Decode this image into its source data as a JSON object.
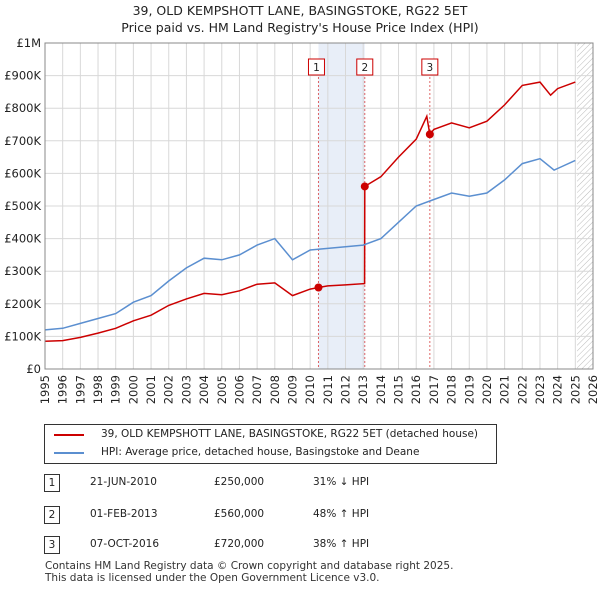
{
  "title": "39, OLD KEMPSHOTT LANE, BASINGSTOKE, RG22 5ET",
  "subtitle": "Price paid vs. HM Land Registry's House Price Index (HPI)",
  "colors": {
    "property": "#cc0000",
    "hpi": "#5b8fd0",
    "shade": "#e8eef8",
    "grid": "#d8d8d8"
  },
  "chart_data": {
    "type": "line",
    "title": "39, OLD KEMPSHOTT LANE, BASINGSTOKE, RG22 5ET",
    "subtitle": "Price paid vs. HM Land Registry's House Price Index (HPI)",
    "xlim": [
      1995,
      2026
    ],
    "ylim": [
      0,
      1000000
    ],
    "x_ticks": [
      "1995",
      "1996",
      "1997",
      "1998",
      "1999",
      "2000",
      "2001",
      "2002",
      "2003",
      "2004",
      "2005",
      "2006",
      "2007",
      "2008",
      "2009",
      "2010",
      "2011",
      "2012",
      "2013",
      "2014",
      "2015",
      "2016",
      "2017",
      "2018",
      "2019",
      "2020",
      "2021",
      "2022",
      "2023",
      "2024",
      "2025",
      "2026"
    ],
    "y_ticks": [
      {
        "value": 0,
        "label": "£0"
      },
      {
        "value": 100000,
        "label": "£100K"
      },
      {
        "value": 200000,
        "label": "£200K"
      },
      {
        "value": 300000,
        "label": "£300K"
      },
      {
        "value": 400000,
        "label": "£400K"
      },
      {
        "value": 500000,
        "label": "£500K"
      },
      {
        "value": 600000,
        "label": "£600K"
      },
      {
        "value": 700000,
        "label": "£700K"
      },
      {
        "value": 800000,
        "label": "£800K"
      },
      {
        "value": 900000,
        "label": "£900K"
      },
      {
        "value": 1000000,
        "label": "£1M"
      }
    ],
    "shaded_regions": [
      [
        2010.47,
        2013.09
      ]
    ],
    "hatched_region_start": 2025.1,
    "series": [
      {
        "name": "39, OLD KEMPSHOTT LANE, BASINGSTOKE, RG22 5ET (detached house)",
        "color": "#cc0000",
        "points": [
          [
            1995,
            85000
          ],
          [
            1996,
            87000
          ],
          [
            1997,
            97000
          ],
          [
            1998,
            110000
          ],
          [
            1999,
            125000
          ],
          [
            2000,
            148000
          ],
          [
            2001,
            165000
          ],
          [
            2002,
            195000
          ],
          [
            2003,
            215000
          ],
          [
            2004,
            232000
          ],
          [
            2005,
            228000
          ],
          [
            2006,
            240000
          ],
          [
            2007,
            260000
          ],
          [
            2008,
            264000
          ],
          [
            2009,
            225000
          ],
          [
            2010,
            245000
          ],
          [
            2010.47,
            250000
          ],
          [
            2011,
            255000
          ],
          [
            2012,
            258000
          ],
          [
            2013.08,
            262000
          ],
          [
            2013.09,
            560000
          ],
          [
            2014,
            590000
          ],
          [
            2015,
            650000
          ],
          [
            2016,
            705000
          ],
          [
            2016.6,
            775000
          ],
          [
            2016.77,
            720000
          ],
          [
            2017,
            735000
          ],
          [
            2018,
            755000
          ],
          [
            2019,
            740000
          ],
          [
            2020,
            760000
          ],
          [
            2021,
            810000
          ],
          [
            2022,
            870000
          ],
          [
            2023,
            880000
          ],
          [
            2023.6,
            840000
          ],
          [
            2024,
            860000
          ],
          [
            2025,
            880000
          ]
        ]
      },
      {
        "name": "HPI: Average price, detached house, Basingstoke and Deane",
        "color": "#5b8fd0",
        "points": [
          [
            1995,
            120000
          ],
          [
            1996,
            125000
          ],
          [
            1997,
            140000
          ],
          [
            1998,
            155000
          ],
          [
            1999,
            170000
          ],
          [
            2000,
            205000
          ],
          [
            2001,
            225000
          ],
          [
            2002,
            270000
          ],
          [
            2003,
            310000
          ],
          [
            2004,
            340000
          ],
          [
            2005,
            335000
          ],
          [
            2006,
            350000
          ],
          [
            2007,
            380000
          ],
          [
            2008,
            400000
          ],
          [
            2009,
            335000
          ],
          [
            2010,
            365000
          ],
          [
            2011,
            370000
          ],
          [
            2012,
            375000
          ],
          [
            2013,
            380000
          ],
          [
            2014,
            400000
          ],
          [
            2015,
            450000
          ],
          [
            2016,
            500000
          ],
          [
            2017,
            520000
          ],
          [
            2018,
            540000
          ],
          [
            2019,
            530000
          ],
          [
            2020,
            540000
          ],
          [
            2021,
            580000
          ],
          [
            2022,
            630000
          ],
          [
            2023,
            645000
          ],
          [
            2023.8,
            610000
          ],
          [
            2024,
            615000
          ],
          [
            2025,
            640000
          ]
        ]
      }
    ],
    "sales": [
      {
        "label": "1",
        "x": 2010.47,
        "y": 250000
      },
      {
        "label": "2",
        "x": 2013.09,
        "y": 560000
      },
      {
        "label": "3",
        "x": 2016.77,
        "y": 720000
      }
    ]
  },
  "legend": {
    "property_label": "39, OLD KEMPSHOTT LANE, BASINGSTOKE, RG22 5ET (detached house)",
    "hpi_label": "HPI: Average price, detached house, Basingstoke and Deane"
  },
  "transactions": [
    {
      "num": "1",
      "date": "21-JUN-2010",
      "price": "£250,000",
      "hpi": "31% ↓ HPI"
    },
    {
      "num": "2",
      "date": "01-FEB-2013",
      "price": "£560,000",
      "hpi": "48% ↑ HPI"
    },
    {
      "num": "3",
      "date": "07-OCT-2016",
      "price": "£720,000",
      "hpi": "38% ↑ HPI"
    }
  ],
  "footer": {
    "line1": "Contains HM Land Registry data © Crown copyright and database right 2025.",
    "line2": "This data is licensed under the Open Government Licence v3.0."
  }
}
